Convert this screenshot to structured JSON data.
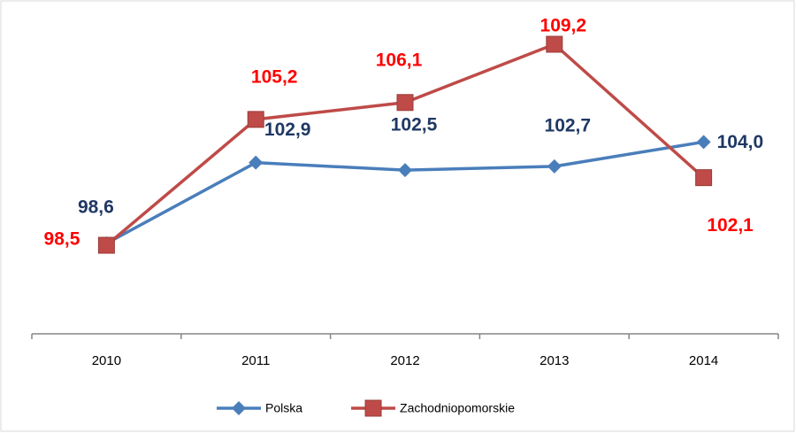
{
  "chart_data": {
    "type": "line",
    "categories": [
      "2010",
      "2011",
      "2012",
      "2013",
      "2014"
    ],
    "series": [
      {
        "name": "Polska",
        "color": "#4a7ebb",
        "marker": "diamond",
        "values": [
          98.6,
          102.9,
          102.5,
          102.7,
          104.0
        ],
        "value_labels": [
          "98,6",
          "102,9",
          "102,5",
          "102,7",
          "104,0"
        ]
      },
      {
        "name": "Zachodniopomorskie",
        "color": "#be4b48",
        "marker": "square",
        "values": [
          98.5,
          105.2,
          106.1,
          109.2,
          102.1
        ],
        "value_labels": [
          "98,5",
          "105,2",
          "106,1",
          "109,2",
          "102,1"
        ]
      }
    ],
    "legend": "bottom"
  }
}
